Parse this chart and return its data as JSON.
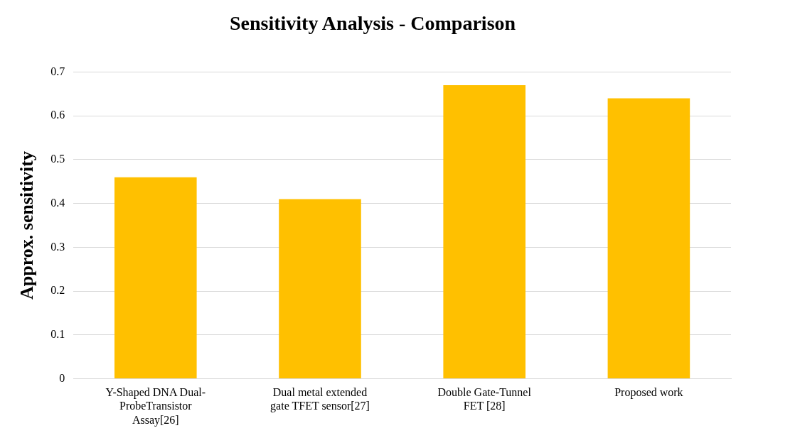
{
  "chart_data": {
    "type": "bar",
    "title": "Sensitivity Analysis - Comparison",
    "ylabel": "Approx. sensitivity",
    "categories": [
      "Y-Shaped DNA Dual-ProbeTransistor Assay[26]",
      "Dual metal extended gate TFET sensor[27]",
      "Double Gate-Tunnel FET [28]",
      "Proposed work"
    ],
    "values": [
      0.46,
      0.41,
      0.67,
      0.64
    ],
    "color": "#ffc000",
    "ylim": [
      0,
      0.7
    ],
    "yticks": [
      0,
      0.1,
      0.2,
      0.3,
      0.4,
      0.5,
      0.6,
      0.7
    ],
    "grid": "y"
  }
}
